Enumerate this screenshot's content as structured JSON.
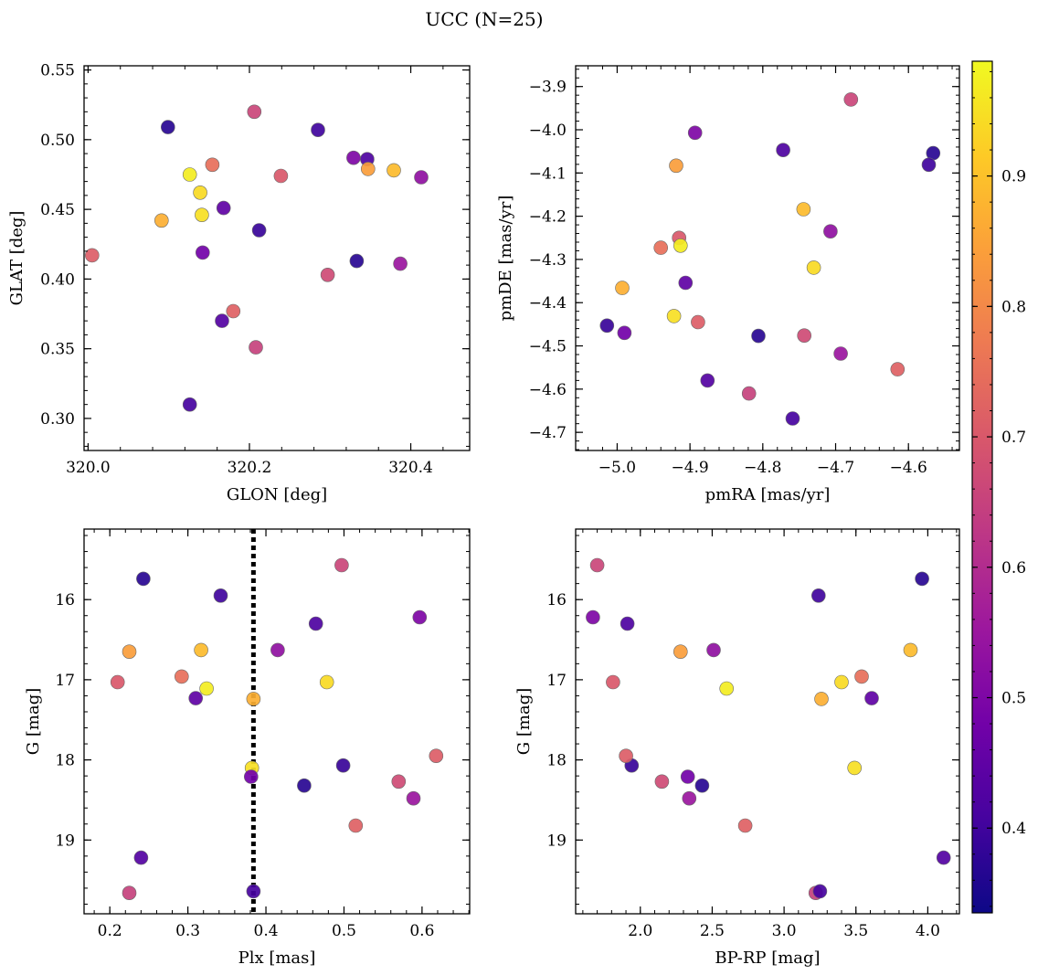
{
  "title": "UCC (N=25)",
  "chart_data": [
    {
      "type": "scatter",
      "xlabel": "GLON [deg]",
      "ylabel": "GLAT [deg]",
      "xlim": [
        319.995,
        320.473
      ],
      "ylim": [
        0.277,
        0.553
      ],
      "xticks": [
        320.0,
        320.2,
        320.4
      ],
      "xtick_labels": [
        "320.0",
        "320.2",
        "320.4"
      ],
      "yticks": [
        0.3,
        0.35,
        0.4,
        0.45,
        0.5,
        0.55
      ],
      "ytick_labels": [
        "0.30",
        "0.35",
        "0.40",
        "0.45",
        "0.50",
        "0.55"
      ],
      "x": [
        320.206,
        320.099,
        320.285,
        320.329,
        320.346,
        320.347,
        320.379,
        320.413,
        320.239,
        320.154,
        320.126,
        320.139,
        320.168,
        320.091,
        320.141,
        320.212,
        320.005,
        320.142,
        320.333,
        320.297,
        320.387,
        320.18,
        320.166,
        320.208,
        320.126
      ],
      "y": [
        0.52,
        0.509,
        0.507,
        0.487,
        0.486,
        0.479,
        0.478,
        0.473,
        0.474,
        0.482,
        0.475,
        0.462,
        0.451,
        0.442,
        0.446,
        0.435,
        0.417,
        0.419,
        0.413,
        0.403,
        0.411,
        0.377,
        0.37,
        0.351,
        0.31
      ]
    },
    {
      "type": "scatter",
      "xlabel": "pmRA [mas/yr]",
      "ylabel": "pmDE [mas/yr]",
      "xlim": [
        -5.057,
        -4.53
      ],
      "ylim": [
        -4.742,
        -3.852
      ],
      "xticks": [
        -5.0,
        -4.9,
        -4.8,
        -4.7,
        -4.6
      ],
      "xtick_labels": [
        "−5.0",
        "−4.9",
        "−4.8",
        "−4.7",
        "−4.6"
      ],
      "yticks": [
        -4.7,
        -4.6,
        -4.5,
        -4.4,
        -4.3,
        -4.2,
        -4.1,
        -4.0,
        -3.9
      ],
      "ytick_labels": [
        "−4.7",
        "−4.6",
        "−4.5",
        "−4.4",
        "−4.3",
        "−4.2",
        "−4.1",
        "−4.0",
        "−3.9"
      ],
      "x": [
        -4.679,
        -4.566,
        -4.572,
        -4.893,
        -4.772,
        -4.919,
        -4.744,
        -4.707,
        -4.915,
        -4.94,
        -4.913,
        -4.73,
        -4.906,
        -4.993,
        -4.922,
        -5.014,
        -4.889,
        -4.99,
        -4.806,
        -4.743,
        -4.693,
        -4.615,
        -4.876,
        -4.819,
        -4.759
      ],
      "y": [
        -3.93,
        -4.054,
        -4.081,
        -4.007,
        -4.047,
        -4.083,
        -4.184,
        -4.235,
        -4.25,
        -4.273,
        -4.268,
        -4.319,
        -4.354,
        -4.366,
        -4.431,
        -4.453,
        -4.445,
        -4.47,
        -4.477,
        -4.476,
        -4.518,
        -4.554,
        -4.58,
        -4.61,
        -4.668
      ]
    },
    {
      "type": "scatter",
      "xlabel": "Plx [mas]",
      "ylabel": "G [mag]",
      "xlim": [
        0.167,
        0.661
      ],
      "ylim": [
        19.92,
        15.12
      ],
      "y_inverted": true,
      "xticks": [
        0.2,
        0.3,
        0.4,
        0.5,
        0.6
      ],
      "xtick_labels": [
        "0.2",
        "0.3",
        "0.4",
        "0.5",
        "0.6"
      ],
      "yticks": [
        16,
        17,
        18,
        19
      ],
      "ytick_labels": [
        "16",
        "17",
        "18",
        "19"
      ],
      "vline": 0.384,
      "x": [
        0.497,
        0.243,
        0.342,
        0.597,
        0.464,
        0.225,
        0.317,
        0.415,
        0.21,
        0.292,
        0.324,
        0.478,
        0.31,
        0.384,
        0.382,
        0.499,
        0.618,
        0.381,
        0.449,
        0.57,
        0.589,
        0.515,
        0.24,
        0.225,
        0.384
      ],
      "y": [
        15.57,
        15.74,
        15.95,
        16.22,
        16.3,
        16.65,
        16.63,
        16.63,
        17.03,
        16.96,
        17.11,
        17.03,
        17.23,
        17.24,
        18.1,
        18.07,
        17.95,
        18.21,
        18.32,
        18.27,
        18.48,
        18.82,
        19.22,
        19.66,
        19.64
      ]
    },
    {
      "type": "scatter",
      "xlabel": "BP-RP [mag]",
      "ylabel": "G [mag]",
      "xlim": [
        1.55,
        4.22
      ],
      "ylim": [
        19.92,
        15.12
      ],
      "y_inverted": true,
      "xticks": [
        2.0,
        2.5,
        3.0,
        3.5,
        4.0
      ],
      "xtick_labels": [
        "2.0",
        "2.5",
        "3.0",
        "3.5",
        "4.0"
      ],
      "yticks": [
        16,
        17,
        18,
        19
      ],
      "ytick_labels": [
        "16",
        "17",
        "18",
        "19"
      ],
      "x": [
        1.7,
        3.96,
        3.24,
        1.67,
        1.91,
        2.28,
        3.88,
        2.51,
        1.81,
        3.54,
        2.6,
        3.4,
        3.61,
        3.26,
        3.49,
        1.94,
        1.9,
        2.33,
        2.43,
        2.15,
        2.34,
        2.73,
        4.11,
        3.22,
        3.25
      ],
      "y": [
        15.57,
        15.74,
        15.95,
        16.22,
        16.3,
        16.65,
        16.63,
        16.63,
        17.03,
        16.96,
        17.11,
        17.03,
        17.23,
        17.24,
        18.1,
        18.07,
        17.95,
        18.21,
        18.32,
        18.27,
        18.48,
        18.82,
        19.22,
        19.66,
        19.64
      ]
    }
  ],
  "colorbar": {
    "range": [
      0.335,
      0.988
    ],
    "ticks": [
      0.4,
      0.5,
      0.6,
      0.7,
      0.8,
      0.9
    ],
    "tick_labels": [
      "0.4",
      "0.5",
      "0.6",
      "0.7",
      "0.8",
      "0.9"
    ],
    "colormap": "plasma",
    "colors": [
      "#0d0887",
      "#46039f",
      "#7201a8",
      "#9c179e",
      "#bd3786",
      "#d8576b",
      "#ed7953",
      "#fb9f3a",
      "#fdca26",
      "#f0f921"
    ]
  },
  "point_values": [
    0.66,
    0.37,
    0.4,
    0.5,
    0.42,
    0.84,
    0.89,
    0.53,
    0.7,
    0.75,
    0.97,
    0.94,
    0.45,
    0.87,
    0.95,
    0.39,
    0.71,
    0.48,
    0.37,
    0.67,
    0.55,
    0.72,
    0.43,
    0.65,
    0.41
  ]
}
